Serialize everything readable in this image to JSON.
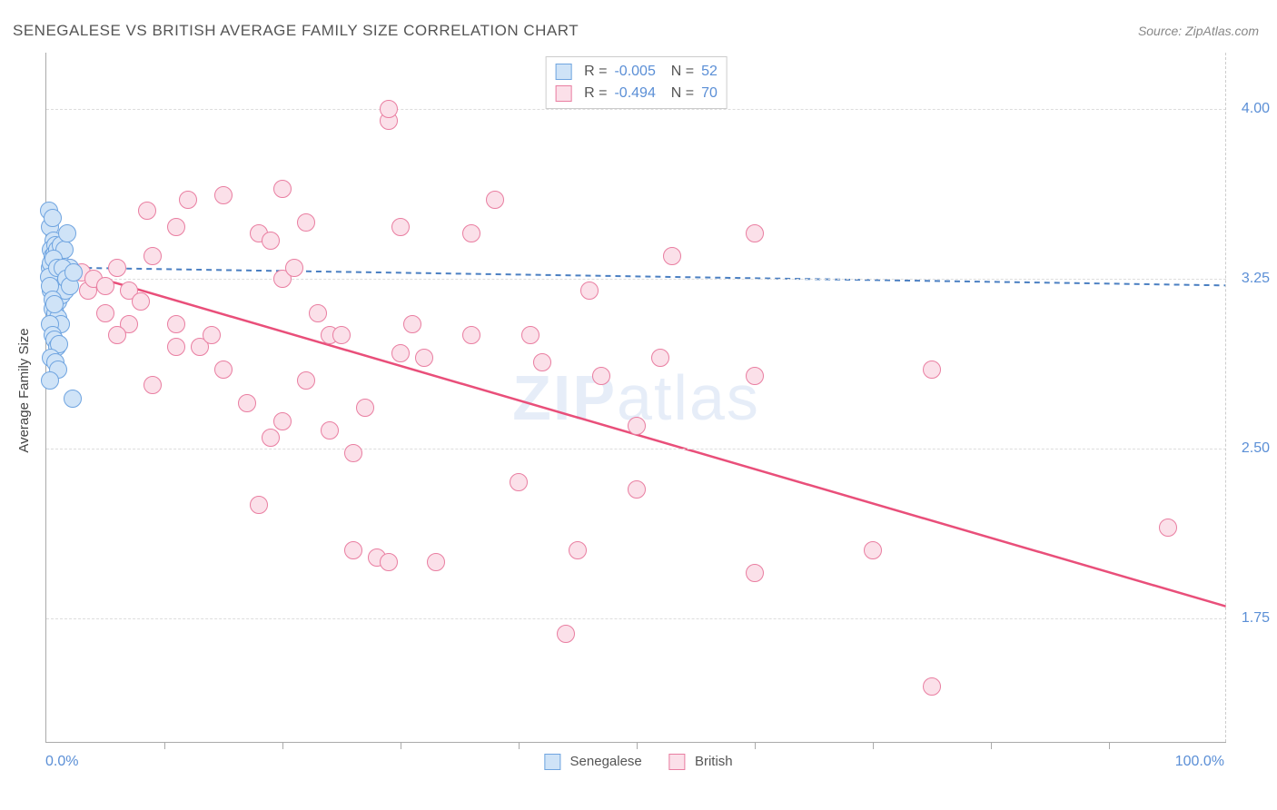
{
  "title": "SENEGALESE VS BRITISH AVERAGE FAMILY SIZE CORRELATION CHART",
  "source_label": "Source: ZipAtlas.com",
  "ylabel": "Average Family Size",
  "xaxis": {
    "min_label": "0.0%",
    "max_label": "100.0%",
    "xmin": 0,
    "xmax": 100,
    "tick_positions": [
      10,
      20,
      30,
      40,
      50,
      60,
      70,
      80,
      90
    ]
  },
  "yaxis": {
    "ymin": 1.2,
    "ymax": 4.25,
    "ticks": [
      {
        "v": 4.0,
        "label": "4.00"
      },
      {
        "v": 3.25,
        "label": "3.25"
      },
      {
        "v": 2.5,
        "label": "2.50"
      },
      {
        "v": 1.75,
        "label": "1.75"
      }
    ],
    "grid_color": "#dddddd",
    "tick_color": "#5b8fd6"
  },
  "series": {
    "senegalese": {
      "label": "Senegalese",
      "point_fill": "#cfe3f7",
      "point_stroke": "#6fa4e0",
      "line_color": "#4a7fc2",
      "line_dash": "6,5",
      "line_width": 2,
      "R": "-0.005",
      "N": "52",
      "trend": {
        "x1": 0,
        "y1": 3.3,
        "x2": 100,
        "y2": 3.22
      },
      "points": [
        [
          0.2,
          3.55
        ],
        [
          0.3,
          3.48
        ],
        [
          0.5,
          3.52
        ],
        [
          0.6,
          3.42
        ],
        [
          0.4,
          3.38
        ],
        [
          0.8,
          3.4
        ],
        [
          1.0,
          3.35
        ],
        [
          1.2,
          3.32
        ],
        [
          0.3,
          3.3
        ],
        [
          0.7,
          3.28
        ],
        [
          0.9,
          3.25
        ],
        [
          1.1,
          3.24
        ],
        [
          1.5,
          3.26
        ],
        [
          1.8,
          3.28
        ],
        [
          2.0,
          3.3
        ],
        [
          0.4,
          3.2
        ],
        [
          0.6,
          3.22
        ],
        [
          0.8,
          3.18
        ],
        [
          1.0,
          3.15
        ],
        [
          1.3,
          3.18
        ],
        [
          1.6,
          3.2
        ],
        [
          0.5,
          3.12
        ],
        [
          0.8,
          3.1
        ],
        [
          1.0,
          3.08
        ],
        [
          1.2,
          3.05
        ],
        [
          0.3,
          3.05
        ],
        [
          0.5,
          3.0
        ],
        [
          0.7,
          2.98
        ],
        [
          0.9,
          2.95
        ],
        [
          1.1,
          2.96
        ],
        [
          0.4,
          2.9
        ],
        [
          0.8,
          2.88
        ],
        [
          1.0,
          2.85
        ],
        [
          0.3,
          2.8
        ],
        [
          2.2,
          2.72
        ],
        [
          0.5,
          3.35
        ],
        [
          0.7,
          3.36
        ],
        [
          0.9,
          3.38
        ],
        [
          1.2,
          3.4
        ],
        [
          1.5,
          3.38
        ],
        [
          0.4,
          3.32
        ],
        [
          0.6,
          3.34
        ],
        [
          0.2,
          3.26
        ],
        [
          0.3,
          3.22
        ],
        [
          0.9,
          3.3
        ],
        [
          1.4,
          3.3
        ],
        [
          1.7,
          3.25
        ],
        [
          2.0,
          3.22
        ],
        [
          2.3,
          3.28
        ],
        [
          0.5,
          3.16
        ],
        [
          0.7,
          3.14
        ],
        [
          1.8,
          3.45
        ]
      ]
    },
    "british": {
      "label": "British",
      "point_fill": "#fbe0e9",
      "point_stroke": "#e97ea1",
      "line_color": "#e94f7a",
      "line_dash": "",
      "line_width": 2.5,
      "R": "-0.494",
      "N": "70",
      "trend": {
        "x1": 0,
        "y1": 3.32,
        "x2": 100,
        "y2": 1.8
      },
      "points": [
        [
          2,
          3.3
        ],
        [
          3,
          3.28
        ],
        [
          3.5,
          3.2
        ],
        [
          4,
          3.25
        ],
        [
          5,
          3.22
        ],
        [
          5,
          3.1
        ],
        [
          6,
          3.3
        ],
        [
          7,
          3.2
        ],
        [
          7,
          3.05
        ],
        [
          8,
          3.15
        ],
        [
          9,
          3.35
        ],
        [
          8.5,
          3.55
        ],
        [
          12,
          3.6
        ],
        [
          15,
          3.62
        ],
        [
          6,
          3.0
        ],
        [
          11,
          2.95
        ],
        [
          13,
          2.95
        ],
        [
          15,
          2.85
        ],
        [
          11,
          3.05
        ],
        [
          14,
          3.0
        ],
        [
          18,
          3.45
        ],
        [
          19,
          3.42
        ],
        [
          20,
          3.65
        ],
        [
          20,
          3.25
        ],
        [
          21,
          3.3
        ],
        [
          22,
          3.5
        ],
        [
          23,
          3.1
        ],
        [
          17,
          2.7
        ],
        [
          18,
          2.25
        ],
        [
          19,
          2.55
        ],
        [
          20,
          2.62
        ],
        [
          22,
          2.8
        ],
        [
          24,
          2.58
        ],
        [
          24,
          3.0
        ],
        [
          25,
          3.0
        ],
        [
          26,
          2.48
        ],
        [
          27,
          2.68
        ],
        [
          29,
          3.95
        ],
        [
          30,
          3.48
        ],
        [
          29,
          4.0
        ],
        [
          30,
          2.92
        ],
        [
          31,
          3.05
        ],
        [
          32,
          2.9
        ],
        [
          26,
          2.05
        ],
        [
          28,
          2.02
        ],
        [
          29,
          2.0
        ],
        [
          33,
          2.0
        ],
        [
          36,
          3.0
        ],
        [
          36,
          3.45
        ],
        [
          38,
          3.6
        ],
        [
          40,
          2.35
        ],
        [
          41,
          3.0
        ],
        [
          42,
          2.88
        ],
        [
          45,
          2.05
        ],
        [
          46,
          3.2
        ],
        [
          47,
          2.82
        ],
        [
          50,
          2.32
        ],
        [
          52,
          2.9
        ],
        [
          53,
          3.35
        ],
        [
          60,
          3.45
        ],
        [
          60,
          2.82
        ],
        [
          60,
          1.95
        ],
        [
          70,
          2.05
        ],
        [
          75,
          2.85
        ],
        [
          75,
          1.45
        ],
        [
          95,
          2.15
        ],
        [
          9,
          2.78
        ],
        [
          11,
          3.48
        ],
        [
          44,
          1.68
        ],
        [
          50,
          2.6
        ]
      ]
    }
  },
  "watermark": {
    "bold": "ZIP",
    "rest": "atlas"
  },
  "chart_style": {
    "point_radius": 10,
    "background": "#ffffff",
    "border_color": "#aaaaaa"
  }
}
